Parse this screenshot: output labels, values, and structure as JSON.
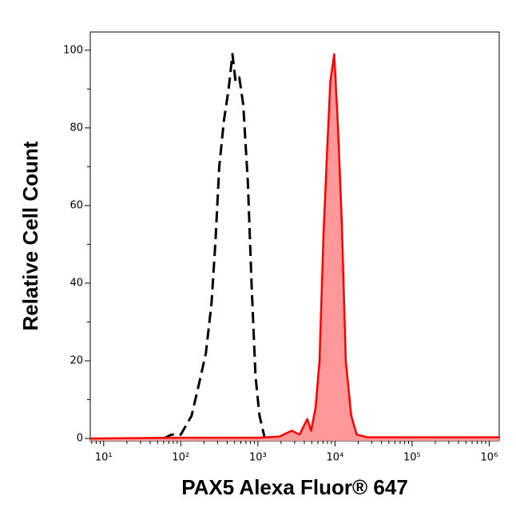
{
  "chart_data": {
    "type": "line",
    "x_label": "PAX5 Alexa Fluor® 647",
    "y_label": "Relative Cell Count",
    "xscale": "log",
    "xlim": [
      6.7,
      1350000
    ],
    "ylim": [
      -0.6,
      104.7
    ],
    "xticks": [
      {
        "value": 10,
        "label": "10¹"
      },
      {
        "value": 100,
        "label": "10²"
      },
      {
        "value": 1000,
        "label": "10³"
      },
      {
        "value": 10000,
        "label": "10⁴"
      },
      {
        "value": 100000,
        "label": "10⁵"
      },
      {
        "value": 1000000,
        "label": "10⁶"
      }
    ],
    "yticks": [
      0,
      20,
      40,
      60,
      80,
      100
    ],
    "yminorticks": [
      10,
      30,
      50,
      70,
      90
    ],
    "series": [
      {
        "color": "#000000",
        "dashed": true,
        "fill": null,
        "x": [
          60,
          76,
          100,
          138,
          174,
          212,
          251,
          282,
          316,
          363,
          417,
          468,
          513,
          575,
          646,
          741,
          832,
          933,
          1047,
          1230
        ],
        "values": [
          0,
          1,
          1,
          5.8,
          14.4,
          22,
          35,
          51,
          70,
          82,
          90,
          99,
          92,
          93,
          86,
          66,
          39,
          16,
          6,
          0
        ]
      },
      {
        "color": "#ff0000",
        "dashed": false,
        "fill": "#ff9999",
        "x": [
          6.7,
          100,
          1000,
          1900,
          2750,
          3470,
          4370,
          4900,
          5600,
          6300,
          7080,
          7940,
          8710,
          9770,
          10960,
          12300,
          13800,
          16200,
          19100,
          26300,
          1350000
        ],
        "values": [
          0,
          0.2,
          0.2,
          0.5,
          2,
          1,
          5,
          2,
          8,
          20,
          52,
          75,
          92,
          99,
          80,
          55,
          20,
          6,
          1,
          0.3,
          0.3
        ]
      }
    ]
  }
}
